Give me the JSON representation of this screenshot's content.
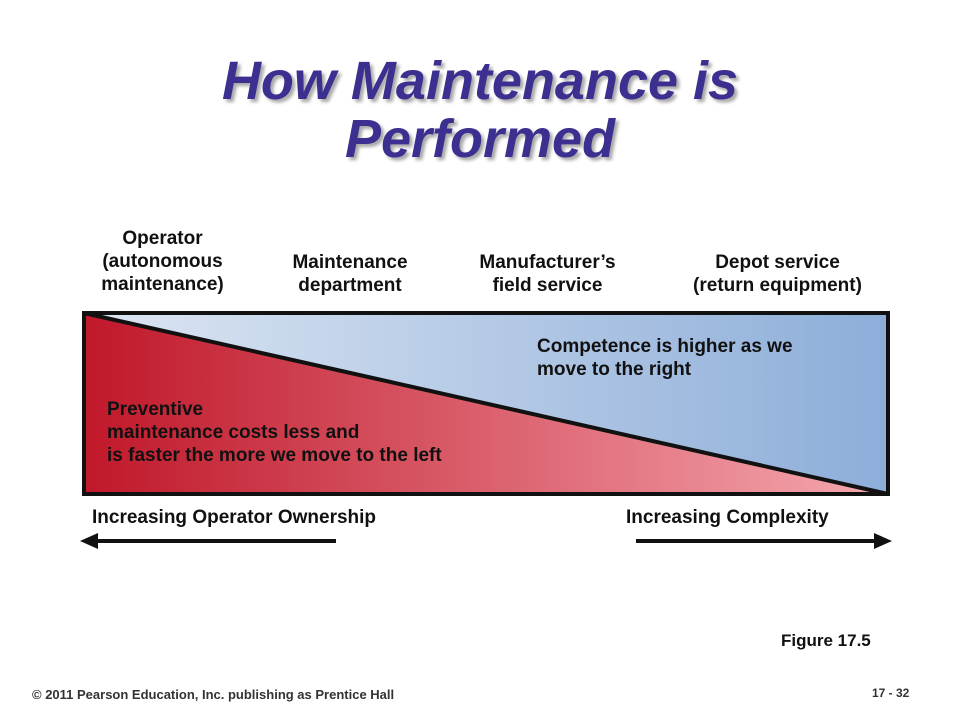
{
  "title": {
    "line1": "How Maintenance is",
    "line2": "Performed"
  },
  "columns": [
    {
      "lines": [
        "Operator",
        "(autonomous",
        "maintenance)"
      ]
    },
    {
      "lines": [
        "Maintenance",
        "department"
      ]
    },
    {
      "lines": [
        "Manufacturer’s",
        "field service"
      ]
    },
    {
      "lines": [
        "Depot service",
        "(return equipment)"
      ]
    }
  ],
  "notes": {
    "competence": {
      "line1": "Competence is higher as we",
      "line2": "move to the right"
    },
    "preventive": {
      "line1": "Preventive",
      "line2": "maintenance costs less and",
      "line3": "is faster the more we move to the left"
    }
  },
  "axes": {
    "left": "Increasing Operator Ownership",
    "right": "Increasing Complexity"
  },
  "figure_label": "Figure 17.5",
  "footer": {
    "copyright": "© 2011 Pearson Education, Inc. publishing as Prentice Hall",
    "slide_number": "17 - 32"
  },
  "colors": {
    "title": "#3b2f8f",
    "red_dark": "#c0182a",
    "red_light": "#f5a8b0",
    "blue_light": "#dde6f3",
    "blue_dark": "#8daed9"
  }
}
